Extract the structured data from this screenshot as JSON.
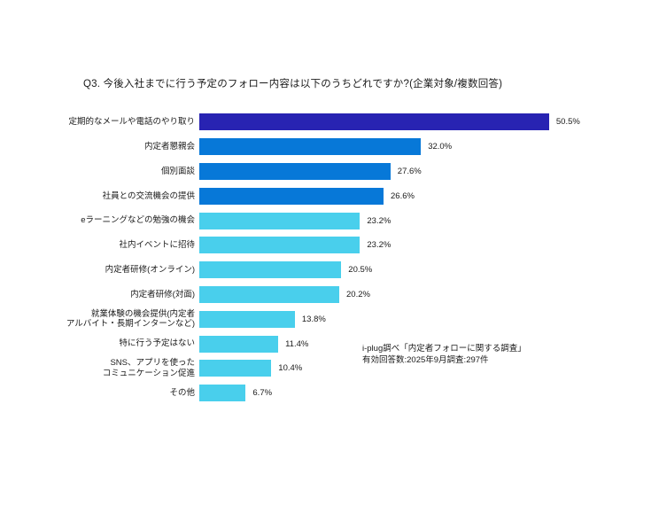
{
  "page": {
    "background": "#ffffff"
  },
  "title": "Q3. 今後入社までに行う予定のフォロー内容は以下のうちどれですか?(企業対象/複数回答)",
  "source_note": {
    "line1": "i-plug調べ「内定者フォローに関する調査」",
    "line2": "有効回答数:2025年9月調査:297件"
  },
  "colors": {
    "bar_dark_blue": "#2823b2",
    "bar_medium_blue": "#0778d8",
    "bar_light_cyan": "#49cfec",
    "text": "#1a1a1a"
  },
  "chart_data": {
    "type": "bar",
    "orientation": "horizontal",
    "title": "Q3. 今後入社までに行う予定のフォロー内容は以下のうちどれですか?(企業対象/複数回答)",
    "categories": [
      "定期的なメールや電話のやり取り",
      "内定者懇親会",
      "個別面談",
      "社員との交流機会の提供",
      "eラーニングなどの勉強の機会",
      "社内イベントに招待",
      "内定者研修(オンライン)",
      "内定者研修(対面)",
      "就業体験の機会提供(内定者\nアルバイト・長期インターンなど)",
      "特に行う予定はない",
      "SNS、アプリを使った\nコミュニケーション促進",
      "その他"
    ],
    "values": [
      50.5,
      32.0,
      27.6,
      26.6,
      23.2,
      23.2,
      20.5,
      20.2,
      13.8,
      11.4,
      10.4,
      6.7
    ],
    "value_labels": [
      "50.5%",
      "32.0%",
      "27.6%",
      "26.6%",
      "23.2%",
      "23.2%",
      "20.5%",
      "20.2%",
      "13.8%",
      "11.4%",
      "10.4%",
      "6.7%"
    ],
    "bar_colors": [
      "#2823b2",
      "#0778d8",
      "#0778d8",
      "#0778d8",
      "#49cfec",
      "#49cfec",
      "#49cfec",
      "#49cfec",
      "#49cfec",
      "#49cfec",
      "#49cfec",
      "#49cfec"
    ],
    "xlim": [
      0,
      55
    ],
    "xlabel": "",
    "ylabel": "",
    "grid": false,
    "legend": "none",
    "value_label_position": "right-of-bar"
  }
}
